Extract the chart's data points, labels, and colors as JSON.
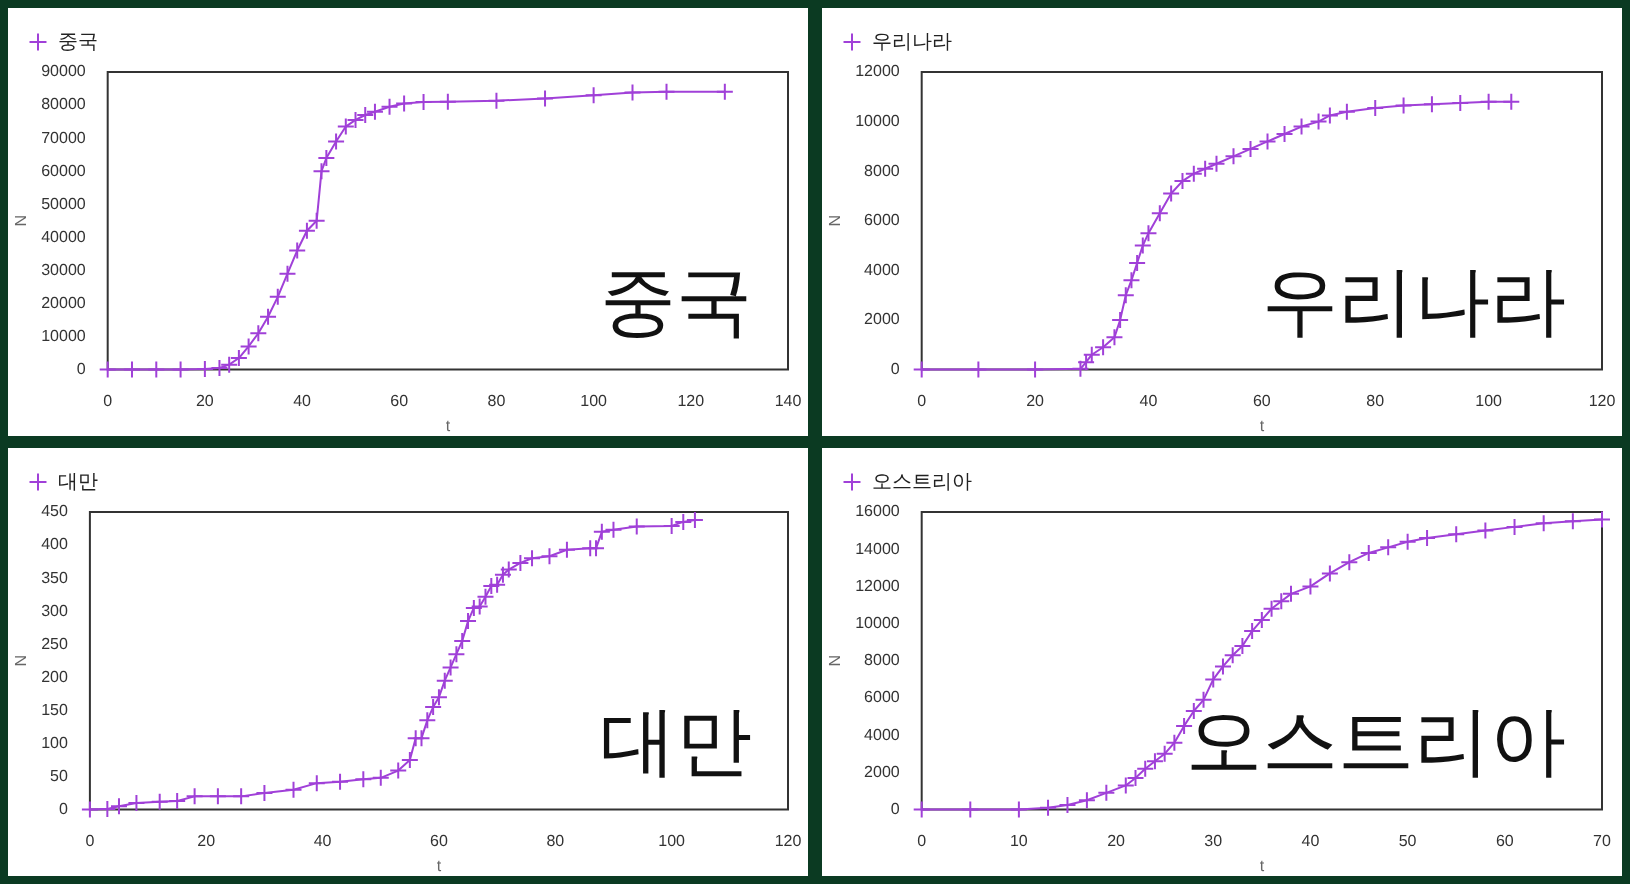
{
  "chart_data": [
    {
      "type": "line",
      "xlabel": "t",
      "ylabel": "N",
      "annotations": [
        "중국"
      ],
      "legend": "top left",
      "grid": false,
      "marker": "cross",
      "line_style": "solid",
      "xlim": [
        0,
        140
      ],
      "xticks": [
        0,
        20,
        40,
        60,
        80,
        100,
        120,
        140
      ],
      "ylim": [
        0,
        90000
      ],
      "yticks": [
        0,
        10000,
        20000,
        30000,
        40000,
        50000,
        60000,
        70000,
        80000,
        90000
      ],
      "series": [
        {
          "name": "중국",
          "color": "#a040d8",
          "x": [
            0,
            5,
            10,
            15,
            20,
            23,
            25,
            27,
            29,
            31,
            33,
            35,
            37,
            39,
            41,
            43,
            44,
            45,
            47,
            49,
            51,
            53,
            55,
            58,
            61,
            65,
            70,
            80,
            90,
            100,
            108,
            115,
            127
          ],
          "values": [
            0,
            0,
            0,
            0,
            200,
            500,
            1500,
            3500,
            7000,
            11000,
            16000,
            22000,
            29000,
            36000,
            42000,
            45000,
            60000,
            64000,
            69000,
            73500,
            75500,
            77000,
            78000,
            79500,
            80500,
            80900,
            81000,
            81300,
            82000,
            83000,
            83800,
            84000,
            84000
          ]
        }
      ]
    },
    {
      "type": "line",
      "xlabel": "t",
      "ylabel": "N",
      "annotations": [
        "우리나라"
      ],
      "legend": "top left",
      "grid": false,
      "marker": "cross",
      "line_style": "solid",
      "xlim": [
        0,
        120
      ],
      "xticks": [
        0,
        20,
        40,
        60,
        80,
        100,
        120
      ],
      "ylim": [
        0,
        12000
      ],
      "yticks": [
        0,
        2000,
        4000,
        6000,
        8000,
        10000,
        12000
      ],
      "series": [
        {
          "name": "우리나라",
          "color": "#a040d8",
          "x": [
            0,
            10,
            20,
            28,
            29,
            30,
            32,
            34,
            35,
            36,
            37,
            38,
            39,
            40,
            42,
            44,
            46,
            48,
            50,
            52,
            55,
            58,
            61,
            64,
            67,
            70,
            72,
            75,
            80,
            85,
            90,
            95,
            100,
            104
          ],
          "values": [
            0,
            0,
            0,
            30,
            300,
            600,
            900,
            1300,
            2000,
            3000,
            3600,
            4300,
            5000,
            5500,
            6300,
            7100,
            7600,
            7900,
            8100,
            8300,
            8600,
            8900,
            9200,
            9500,
            9800,
            10000,
            10250,
            10400,
            10550,
            10650,
            10700,
            10750,
            10800,
            10800
          ]
        }
      ]
    },
    {
      "type": "line",
      "xlabel": "t",
      "ylabel": "N",
      "annotations": [
        "대만"
      ],
      "legend": "top left",
      "grid": false,
      "marker": "cross",
      "line_style": "solid",
      "xlim": [
        0,
        120
      ],
      "xticks": [
        0,
        20,
        40,
        60,
        80,
        100,
        120
      ],
      "ylim": [
        0,
        450
      ],
      "yticks": [
        0,
        50,
        100,
        150,
        200,
        250,
        300,
        350,
        400,
        450
      ],
      "series": [
        {
          "name": "대만",
          "color": "#a040d8",
          "x": [
            0,
            3,
            5,
            8,
            12,
            15,
            18,
            22,
            26,
            30,
            35,
            39,
            43,
            47,
            50,
            53,
            55,
            56,
            57,
            58,
            59,
            60,
            61,
            62,
            63,
            64,
            65,
            66,
            67,
            68,
            69,
            70,
            71,
            72,
            74,
            76,
            79,
            82,
            86,
            87,
            88,
            90,
            94,
            100,
            102,
            104
          ],
          "values": [
            0,
            1,
            5,
            10,
            12,
            13,
            20,
            20,
            20,
            25,
            30,
            40,
            42,
            46,
            48,
            59,
            75,
            108,
            108,
            135,
            155,
            170,
            195,
            215,
            235,
            255,
            285,
            305,
            307,
            322,
            338,
            340,
            355,
            363,
            373,
            380,
            383,
            393,
            395,
            395,
            420,
            423,
            428,
            429,
            435,
            438
          ]
        }
      ]
    },
    {
      "type": "line",
      "xlabel": "t",
      "ylabel": "N",
      "annotations": [
        "오스트리아"
      ],
      "legend": "top left",
      "grid": false,
      "marker": "cross",
      "line_style": "solid",
      "xlim": [
        0,
        70
      ],
      "xticks": [
        0,
        10,
        20,
        30,
        40,
        50,
        60,
        70
      ],
      "ylim": [
        0,
        16000
      ],
      "yticks": [
        0,
        2000,
        4000,
        6000,
        8000,
        10000,
        12000,
        14000,
        16000
      ],
      "series": [
        {
          "name": "오스트리아",
          "color": "#a040d8",
          "x": [
            0,
            5,
            10,
            13,
            15,
            17,
            19,
            21,
            22,
            23,
            24,
            25,
            26,
            27,
            28,
            29,
            30,
            31,
            32,
            33,
            34,
            35,
            36,
            37,
            38,
            40,
            42,
            44,
            46,
            48,
            50,
            52,
            55,
            58,
            61,
            64,
            67,
            70
          ],
          "values": [
            0,
            0,
            0,
            100,
            250,
            500,
            900,
            1300,
            1700,
            2200,
            2600,
            3000,
            3600,
            4500,
            5300,
            5900,
            7000,
            7700,
            8300,
            8800,
            9600,
            10200,
            10800,
            11200,
            11600,
            12000,
            12700,
            13300,
            13800,
            14100,
            14400,
            14600,
            14800,
            15000,
            15200,
            15400,
            15500,
            15600
          ]
        }
      ]
    }
  ]
}
